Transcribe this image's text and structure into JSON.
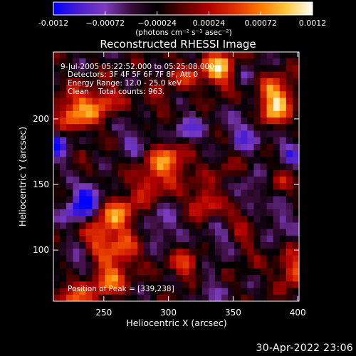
{
  "chart_data": {
    "type": "heatmap",
    "title": "Reconstructed RHESSI Image",
    "xlabel": "Heliocentric X (arcsec)",
    "ylabel": "Heliocentric Y (arcsec)",
    "xlim": [
      211,
      401
    ],
    "ylim": [
      61,
      251
    ],
    "x_ticks": [
      250,
      300,
      350,
      400
    ],
    "y_ticks": [
      100,
      150,
      200
    ],
    "colorbar": {
      "range": [
        -0.0012,
        0.0012
      ],
      "tick_values": [
        -0.0012,
        -0.00072,
        -0.00024,
        0.00024,
        0.00072,
        0.0012
      ],
      "tick_labels": [
        "-0.0012",
        "−0.00072",
        "−0.00024",
        "0.00024",
        "0.00072",
        "0.0012"
      ],
      "unit_label": "(photons cm⁻² s⁻¹ asec⁻²)",
      "palette": [
        "#0000ff",
        "#4b1fd0",
        "#7d3cbf",
        "#3a0c3a",
        "#000000",
        "#5a0000",
        "#b00000",
        "#e03000",
        "#ff7a00",
        "#ffc840",
        "#ffffff"
      ]
    },
    "annotations": [
      "9-Jul-2005 05:22:52.000 to 05:25:08.000",
      "Detectors: 3F 4F 5F 6F 7F 8F, Att 0",
      "Energy Range: 12.0 - 25.0 keV",
      "Clean    Total counts: 963."
    ],
    "peak_label": "Position of Peak = [339,238]",
    "peak": [
      339,
      238
    ],
    "hotspots": [
      {
        "x": 228,
        "y": 205,
        "v": 0.00105,
        "r": 11
      },
      {
        "x": 250,
        "y": 214,
        "v": 0.0007,
        "r": 9
      },
      {
        "x": 300,
        "y": 168,
        "v": 0.00095,
        "r": 12
      },
      {
        "x": 285,
        "y": 150,
        "v": 0.0006,
        "r": 8
      },
      {
        "x": 262,
        "y": 128,
        "v": 0.00085,
        "r": 11
      },
      {
        "x": 245,
        "y": 112,
        "v": 0.0008,
        "r": 10
      },
      {
        "x": 327,
        "y": 137,
        "v": 0.00078,
        "r": 8
      },
      {
        "x": 355,
        "y": 123,
        "v": 0.00045,
        "r": 8
      },
      {
        "x": 339,
        "y": 238,
        "v": 0.00115,
        "r": 10
      },
      {
        "x": 383,
        "y": 218,
        "v": 0.0011,
        "r": 10
      },
      {
        "x": 380,
        "y": 202,
        "v": 0.0007,
        "r": 8
      },
      {
        "x": 310,
        "y": 232,
        "v": 0.0005,
        "r": 9
      },
      {
        "x": 265,
        "y": 98,
        "v": 0.00068,
        "r": 9
      },
      {
        "x": 313,
        "y": 88,
        "v": 0.00062,
        "r": 9
      },
      {
        "x": 252,
        "y": 78,
        "v": 0.0009,
        "r": 10
      },
      {
        "x": 225,
        "y": 65,
        "v": 0.0008,
        "r": 9
      },
      {
        "x": 397,
        "y": 84,
        "v": 0.00085,
        "r": 9
      },
      {
        "x": 385,
        "y": 152,
        "v": 0.0004,
        "r": 8
      },
      {
        "x": 345,
        "y": 160,
        "v": 0.00025,
        "r": 10
      },
      {
        "x": 360,
        "y": 100,
        "v": 0.0003,
        "r": 8
      },
      {
        "x": 290,
        "y": 210,
        "v": 0.00035,
        "r": 8
      },
      {
        "x": 237,
        "y": 160,
        "v": 0.0003,
        "r": 7
      },
      {
        "x": 232,
        "y": 130,
        "v": -0.0009,
        "r": 9
      },
      {
        "x": 240,
        "y": 145,
        "v": -0.0007,
        "r": 8
      },
      {
        "x": 213,
        "y": 180,
        "v": -0.0008,
        "r": 9
      },
      {
        "x": 313,
        "y": 190,
        "v": -0.0006,
        "r": 10
      },
      {
        "x": 295,
        "y": 118,
        "v": -0.00055,
        "r": 9
      },
      {
        "x": 360,
        "y": 190,
        "v": -0.0006,
        "r": 10
      },
      {
        "x": 365,
        "y": 145,
        "v": -0.0005,
        "r": 9
      },
      {
        "x": 395,
        "y": 175,
        "v": -0.00055,
        "r": 8
      },
      {
        "x": 340,
        "y": 105,
        "v": -0.0004,
        "r": 9
      },
      {
        "x": 385,
        "y": 122,
        "v": -0.0005,
        "r": 8
      },
      {
        "x": 230,
        "y": 90,
        "v": -0.0005,
        "r": 8
      },
      {
        "x": 275,
        "y": 185,
        "v": -0.0005,
        "r": 9
      },
      {
        "x": 330,
        "y": 70,
        "v": -0.0004,
        "r": 8
      },
      {
        "x": 360,
        "y": 232,
        "v": -0.00035,
        "r": 8
      }
    ]
  },
  "footer": {
    "timestamp": "30-Apr-2022 23:06"
  }
}
